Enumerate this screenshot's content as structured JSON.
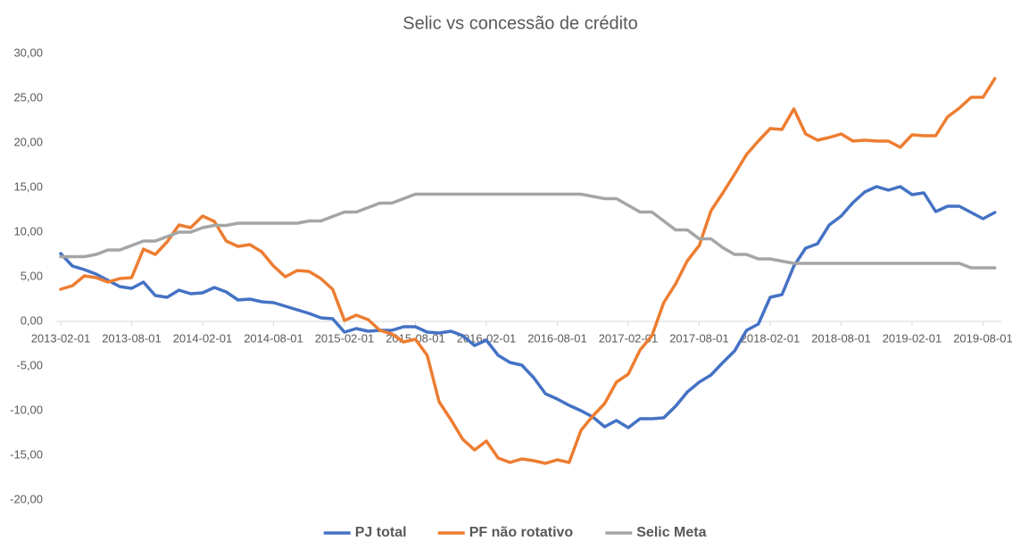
{
  "chart_data": {
    "type": "line",
    "title": "Selic vs concessão de crédito",
    "categories": [
      "2013-02-01",
      null,
      null,
      null,
      null,
      null,
      "2013-08-01",
      null,
      null,
      null,
      null,
      null,
      "2014-02-01",
      null,
      null,
      null,
      null,
      null,
      "2014-08-01",
      null,
      null,
      null,
      null,
      null,
      "2015-02-01",
      null,
      null,
      null,
      null,
      null,
      "2015-08-01",
      null,
      null,
      null,
      null,
      null,
      "2016-02-01",
      null,
      null,
      null,
      null,
      null,
      "2016-08-01",
      null,
      null,
      null,
      null,
      null,
      "2017-02-01",
      null,
      null,
      null,
      null,
      null,
      "2017-08-01",
      null,
      null,
      null,
      null,
      null,
      "2018-02-01",
      null,
      null,
      null,
      null,
      null,
      "2018-08-01",
      null,
      null,
      null,
      null,
      null,
      "2019-02-01",
      null,
      null,
      null,
      null,
      null,
      "2019-08-01",
      null
    ],
    "series": [
      {
        "name": "PJ total",
        "color": "#4472c4",
        "values": [
          7.6,
          6.2,
          5.8,
          5.3,
          4.6,
          3.9,
          3.7,
          4.4,
          2.9,
          2.7,
          3.5,
          3.1,
          3.2,
          3.8,
          3.3,
          2.4,
          2.5,
          2.2,
          2.1,
          1.7,
          1.3,
          0.9,
          0.4,
          0.3,
          -1.2,
          -0.8,
          -1.1,
          -1.0,
          -1.0,
          -0.6,
          -0.6,
          -1.2,
          -1.3,
          -1.1,
          -1.6,
          -2.7,
          -2.1,
          -3.8,
          -4.6,
          -4.9,
          -6.3,
          -8.1,
          -8.7,
          -9.4,
          -10.0,
          -10.7,
          -11.8,
          -11.1,
          -11.9,
          -10.9,
          -10.9,
          -10.8,
          -9.5,
          -7.9,
          -6.8,
          -6.0,
          -4.6,
          -3.3,
          -1.0,
          -0.3,
          2.7,
          3.0,
          6.2,
          8.2,
          8.7,
          10.8,
          11.8,
          13.3,
          14.5,
          15.1,
          14.7,
          15.1,
          14.2,
          14.4,
          12.3,
          12.9,
          12.9,
          12.2,
          11.5,
          12.2
        ]
      },
      {
        "name": "PF não rotativo",
        "color": "#ed7d31",
        "values": [
          3.6,
          4.0,
          5.1,
          4.9,
          4.4,
          4.8,
          4.9,
          8.1,
          7.5,
          8.9,
          10.8,
          10.5,
          11.8,
          11.2,
          9.0,
          8.4,
          8.6,
          7.8,
          6.2,
          5.0,
          5.7,
          5.6,
          4.8,
          3.6,
          0.1,
          0.7,
          0.2,
          -1.0,
          -1.4,
          -2.3,
          -2.0,
          -3.8,
          -9.0,
          -11.0,
          -13.2,
          -14.4,
          -13.4,
          -15.3,
          -15.8,
          -15.4,
          -15.6,
          -15.9,
          -15.5,
          -15.8,
          -12.2,
          -10.6,
          -9.2,
          -6.8,
          -5.9,
          -3.2,
          -1.6,
          2.1,
          4.2,
          6.8,
          8.5,
          12.4,
          14.4,
          16.5,
          18.7,
          20.2,
          21.6,
          21.5,
          23.8,
          21.0,
          20.3,
          20.6,
          21.0,
          20.2,
          20.3,
          20.2,
          20.2,
          19.5,
          20.9,
          20.8,
          20.8,
          22.9,
          23.9,
          25.1,
          25.1,
          27.2
        ]
      },
      {
        "name": "Selic Meta",
        "color": "#a5a5a5",
        "values": [
          7.25,
          7.25,
          7.25,
          7.5,
          8.0,
          8.0,
          8.5,
          9.0,
          9.0,
          9.5,
          10.0,
          10.0,
          10.5,
          10.75,
          10.75,
          11.0,
          11.0,
          11.0,
          11.0,
          11.0,
          11.0,
          11.25,
          11.25,
          11.75,
          12.25,
          12.25,
          12.75,
          13.25,
          13.25,
          13.75,
          14.25,
          14.25,
          14.25,
          14.25,
          14.25,
          14.25,
          14.25,
          14.25,
          14.25,
          14.25,
          14.25,
          14.25,
          14.25,
          14.25,
          14.25,
          14.0,
          13.75,
          13.75,
          13.0,
          12.25,
          12.25,
          11.25,
          10.25,
          10.25,
          9.25,
          9.25,
          8.25,
          7.5,
          7.5,
          7.0,
          7.0,
          6.75,
          6.5,
          6.5,
          6.5,
          6.5,
          6.5,
          6.5,
          6.5,
          6.5,
          6.5,
          6.5,
          6.5,
          6.5,
          6.5,
          6.5,
          6.5,
          6.0,
          6.0,
          6.0
        ]
      }
    ],
    "ylim": [
      -20,
      30
    ],
    "yticks": [
      {
        "value": -20,
        "label": "-20,00"
      },
      {
        "value": -15,
        "label": "-15,00"
      },
      {
        "value": -10,
        "label": "-10,00"
      },
      {
        "value": -5,
        "label": "-5,00"
      },
      {
        "value": 0,
        "label": "0,00"
      },
      {
        "value": 5,
        "label": "5,00"
      },
      {
        "value": 10,
        "label": "10,00"
      },
      {
        "value": 15,
        "label": "15,00"
      },
      {
        "value": 20,
        "label": "20,00"
      },
      {
        "value": 25,
        "label": "25,00"
      },
      {
        "value": 30,
        "label": "30,00"
      }
    ],
    "grid": false,
    "legend": "bottom"
  }
}
